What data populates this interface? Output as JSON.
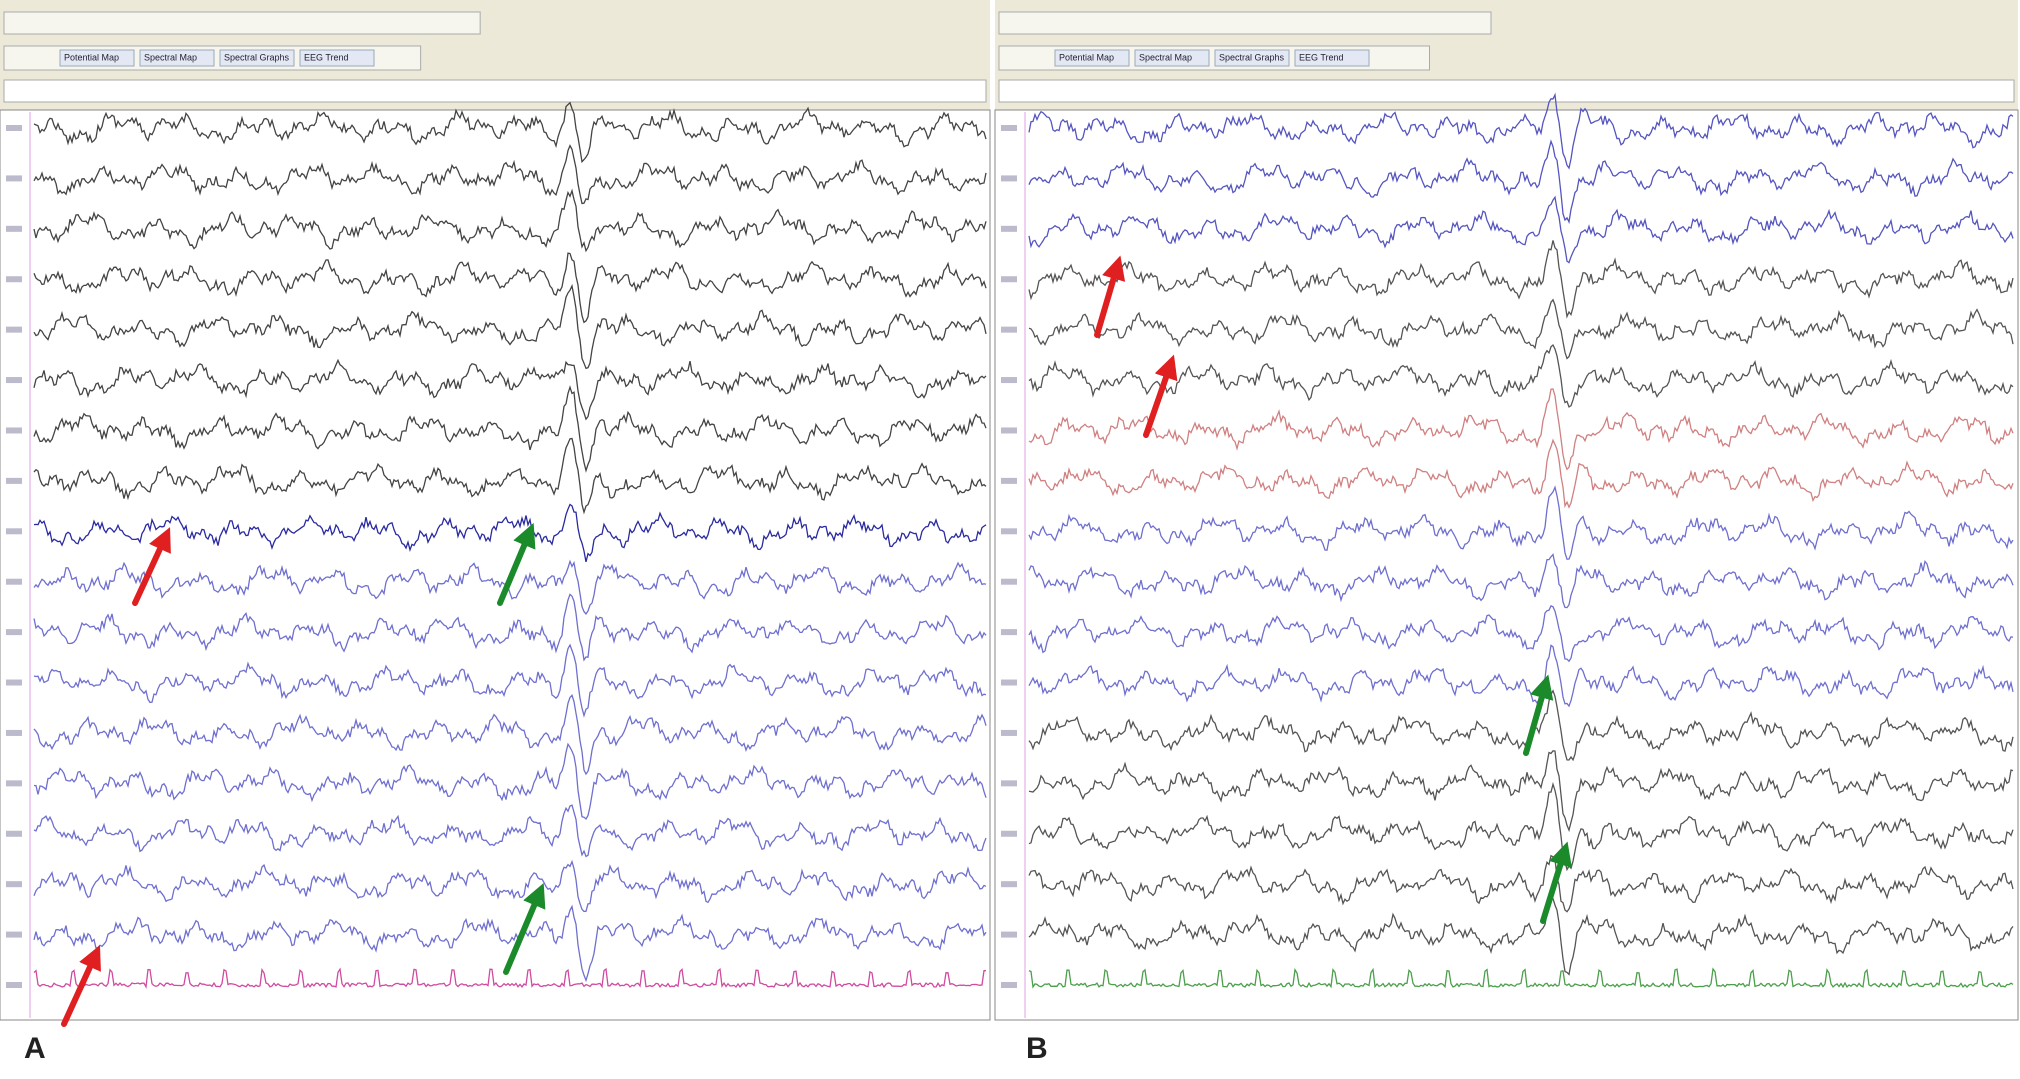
{
  "panels": [
    {
      "label": "A",
      "buttons": [
        "Potential Map",
        "Spectral Map",
        "Spectral Graphs",
        "EEG Trend"
      ]
    },
    {
      "label": "B",
      "buttons": [
        "Potential Map",
        "Spectral Map",
        "Spectral Graphs",
        "EEG Trend"
      ]
    }
  ]
}
